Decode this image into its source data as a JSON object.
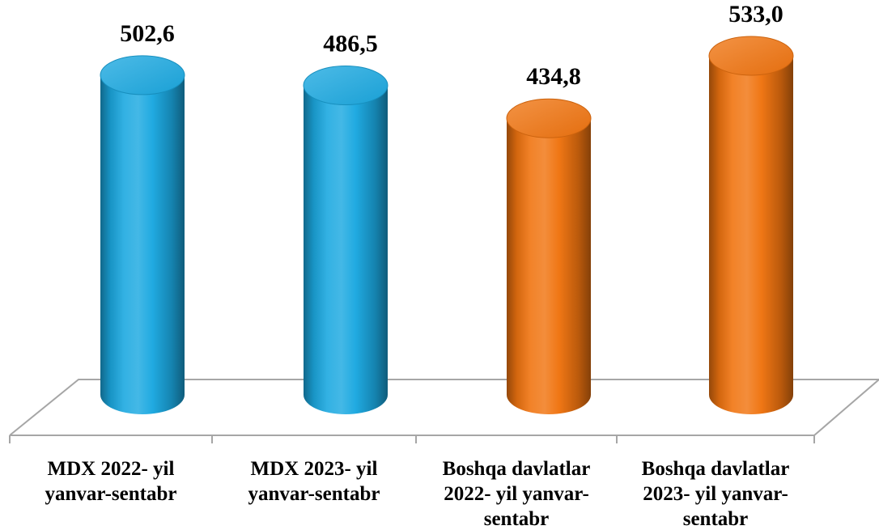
{
  "chart_data": {
    "type": "bar",
    "style": "3d-cylinder",
    "categories": [
      [
        "MDX 2022- yil",
        "yanvar-sentabr"
      ],
      [
        "MDX 2023- yil",
        "yanvar-sentabr"
      ],
      [
        "Boshqa davlatlar",
        "2022- yil yanvar-",
        "sentabr"
      ],
      [
        "Boshqa davlatlar",
        "2023- yil yanvar-",
        "sentabr"
      ]
    ],
    "values": [
      502.6,
      486.5,
      434.8,
      533.0
    ],
    "data_labels": [
      "502,6",
      "486,5",
      "434,8",
      "533,0"
    ],
    "bar_colors": [
      "#1BA8E0",
      "#1BA8E0",
      "#F07410",
      "#F07410"
    ],
    "ylim": [
      0,
      533.0
    ],
    "grid": false,
    "legend": "none",
    "axes_visible": false
  }
}
